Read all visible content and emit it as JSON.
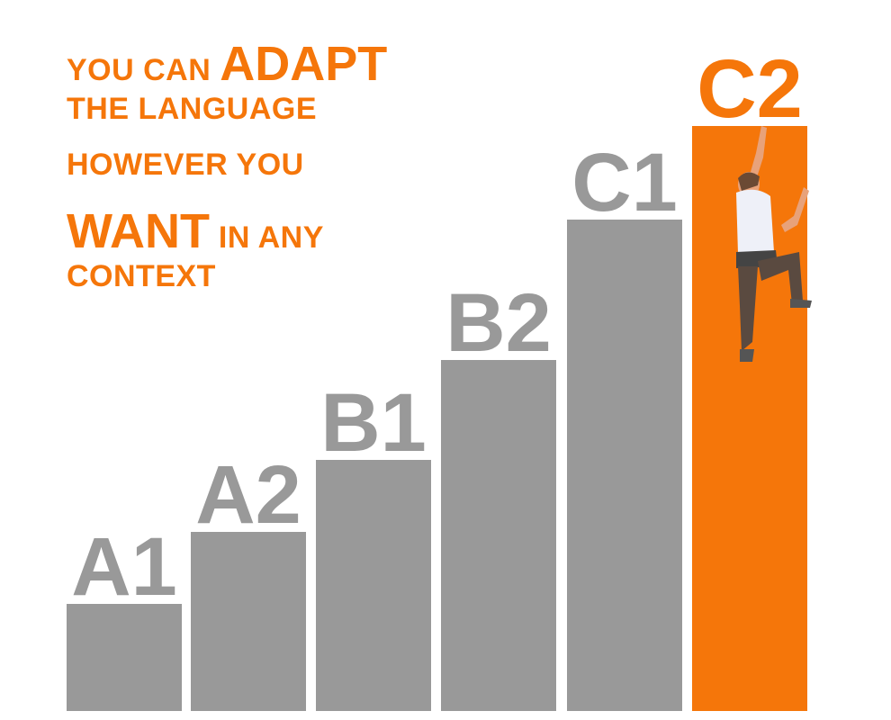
{
  "headline": {
    "lines": [
      [
        {
          "text": "YOU CAN "
        },
        {
          "text": "ADAPT",
          "emphasis": true
        }
      ],
      [
        {
          "text": "THE LANGUAGE"
        }
      ],
      [
        {
          "text": "HOWEVER YOU"
        }
      ],
      [
        {
          "text": "WANT",
          "emphasis": true
        },
        {
          "text": " IN ANY"
        }
      ],
      [
        {
          "text": "CONTEXT"
        }
      ]
    ]
  },
  "levels": [
    {
      "label": "A1"
    },
    {
      "label": "A2"
    },
    {
      "label": "B1"
    },
    {
      "label": "B2"
    },
    {
      "label": "C1"
    },
    {
      "label": "C2",
      "highlight": true
    }
  ]
}
